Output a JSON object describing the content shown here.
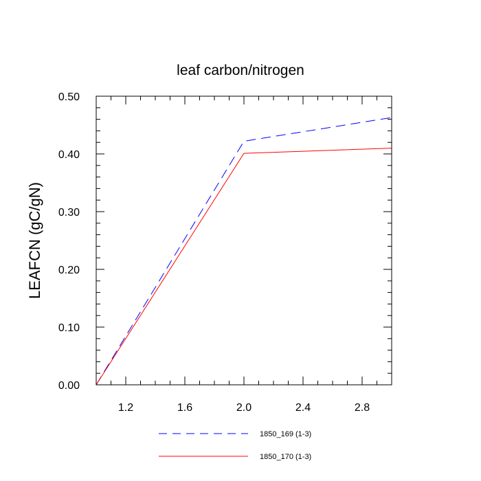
{
  "chart_data": {
    "type": "line",
    "title": "leaf carbon/nitrogen",
    "xlabel": "",
    "ylabel": "LEAFCN  (gC/gN)",
    "xlim": [
      1.0,
      3.0
    ],
    "ylim": [
      0.0,
      0.5
    ],
    "x_ticks": [
      1.2,
      1.6,
      2.0,
      2.4,
      2.8
    ],
    "x_tick_labels": [
      "1.2",
      "1.6",
      "2.0",
      "2.4",
      "2.8"
    ],
    "y_ticks": [
      0.0,
      0.1,
      0.2,
      0.3,
      0.4,
      0.5
    ],
    "y_tick_labels": [
      "0.00",
      "0.10",
      "0.20",
      "0.30",
      "0.40",
      "0.50"
    ],
    "grid": false,
    "legend_position": "bottom",
    "x": [
      1,
      2,
      3
    ],
    "series": [
      {
        "name": "1850_169 (1-3)",
        "values": [
          0.0,
          0.422,
          0.463
        ],
        "color": "#0000ff",
        "dash": "dashed"
      },
      {
        "name": "1850_170 (1-3)",
        "values": [
          0.0,
          0.401,
          0.41
        ],
        "color": "#ff0000",
        "dash": "solid"
      }
    ]
  }
}
